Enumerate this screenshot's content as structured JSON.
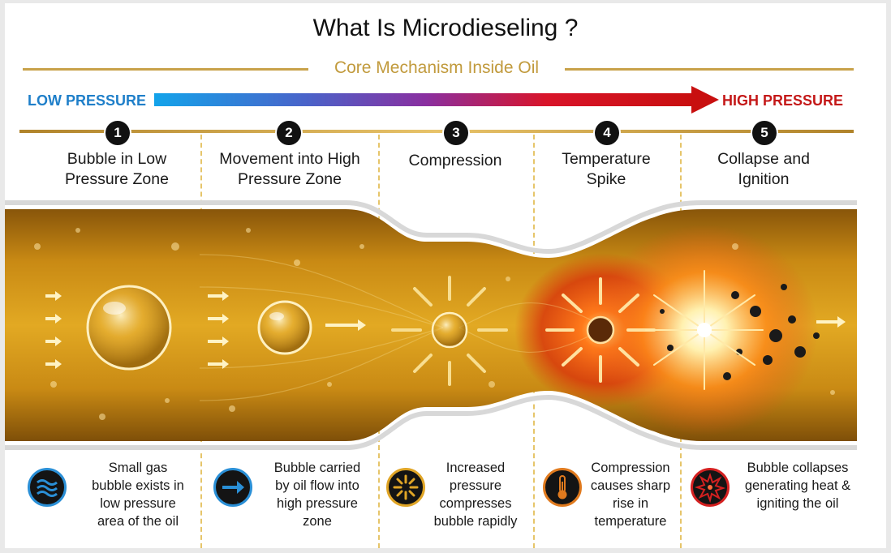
{
  "title": "What Is Microdieseling ?",
  "subtitle": "Core Mechanism Inside Oil",
  "pressure": {
    "low_label": "LOW PRESSURE",
    "high_label": "HIGH PRESSURE",
    "low_color": "#1f7fc9",
    "high_color": "#c41818"
  },
  "stages": [
    {
      "number": "1",
      "title_lines": [
        "Bubble in Low",
        "Pressure Zone"
      ],
      "icon": "waves-icon",
      "icon_color": "#2a8fd6",
      "desc_lines": [
        "Small gas",
        "bubble exists in",
        "low pressure",
        "area of the oil"
      ]
    },
    {
      "number": "2",
      "title_lines": [
        "Movement into High",
        "Pressure Zone"
      ],
      "icon": "arrow-right-icon",
      "icon_color": "#2a8fd6",
      "desc_lines": [
        "Bubble carried",
        "by  oil flow into",
        "high pressure",
        "zone"
      ]
    },
    {
      "number": "3",
      "title_lines": [
        "Compression"
      ],
      "icon": "compress-arrows-icon",
      "icon_color": "#e0a526",
      "desc_lines": [
        "Increased",
        "pressure",
        "compresses",
        "bubble rapidly"
      ]
    },
    {
      "number": "4",
      "title_lines": [
        "Temperature",
        "Spike"
      ],
      "icon": "thermometer-icon",
      "icon_color": "#e07a1e",
      "desc_lines": [
        "Compression",
        "causes sharp",
        "rise in",
        "temperature"
      ]
    },
    {
      "number": "5",
      "title_lines": [
        "Collapse and",
        "Ignition"
      ],
      "icon": "explosion-icon",
      "icon_color": "#d42020",
      "desc_lines": [
        "Bubble collapses",
        "generating heat &",
        "igniting the oil"
      ]
    }
  ],
  "colors": {
    "oil": "#d49a1c",
    "gold": "#c8a24a",
    "frame": "#ffffff"
  }
}
